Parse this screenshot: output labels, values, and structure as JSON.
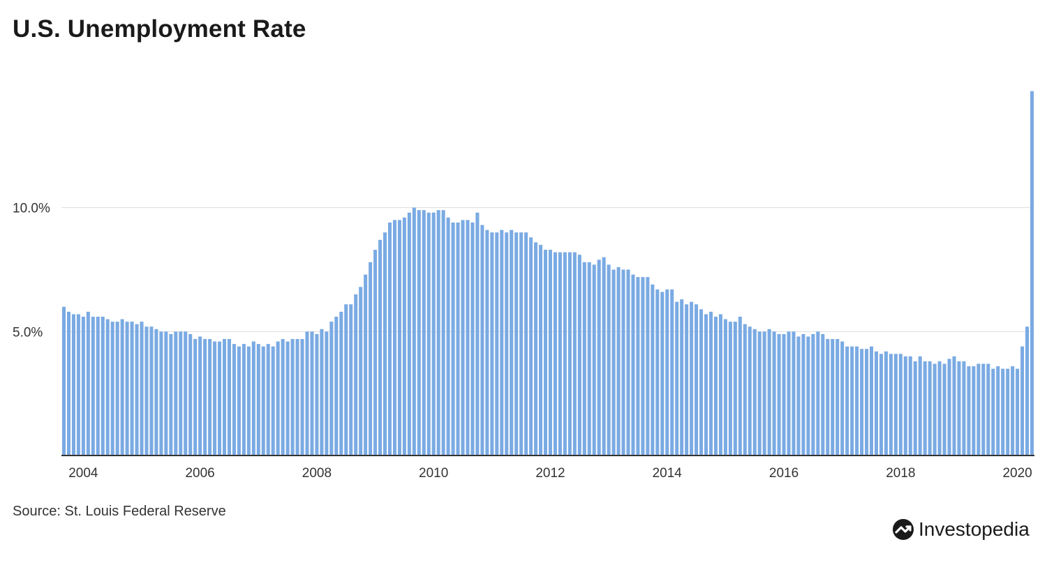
{
  "title": "U.S. Unemployment Rate",
  "source": "Source: St. Louis Federal Reserve",
  "brand": "Investopedia",
  "colors": {
    "bar": "#7aaae3",
    "axis": "#333333",
    "grid": "#dddddd"
  },
  "chart_data": {
    "type": "bar",
    "title": "U.S. Unemployment Rate",
    "xlabel": "",
    "ylabel": "",
    "ylim": [
      0,
      15
    ],
    "yticks": [
      5,
      10
    ],
    "ytick_labels": [
      "5.0%",
      "10.0%"
    ],
    "xtick_labels": [
      "2004",
      "2006",
      "2008",
      "2010",
      "2012",
      "2014",
      "2016",
      "2018",
      "2020"
    ],
    "grid": "horizontal",
    "x_start": "2003-09",
    "x_end": "2020-04",
    "values": [
      6.0,
      5.8,
      5.7,
      5.7,
      5.6,
      5.8,
      5.6,
      5.6,
      5.6,
      5.5,
      5.4,
      5.4,
      5.5,
      5.4,
      5.4,
      5.3,
      5.4,
      5.2,
      5.2,
      5.1,
      5.0,
      5.0,
      4.9,
      5.0,
      5.0,
      5.0,
      4.9,
      4.7,
      4.8,
      4.7,
      4.7,
      4.6,
      4.6,
      4.7,
      4.7,
      4.5,
      4.4,
      4.5,
      4.4,
      4.6,
      4.5,
      4.4,
      4.5,
      4.4,
      4.6,
      4.7,
      4.6,
      4.7,
      4.7,
      4.7,
      5.0,
      5.0,
      4.9,
      5.1,
      5.0,
      5.4,
      5.6,
      5.8,
      6.1,
      6.1,
      6.5,
      6.8,
      7.3,
      7.8,
      8.3,
      8.7,
      9.0,
      9.4,
      9.5,
      9.5,
      9.6,
      9.8,
      10.0,
      9.9,
      9.9,
      9.8,
      9.8,
      9.9,
      9.9,
      9.6,
      9.4,
      9.4,
      9.5,
      9.5,
      9.4,
      9.8,
      9.3,
      9.1,
      9.0,
      9.0,
      9.1,
      9.0,
      9.1,
      9.0,
      9.0,
      9.0,
      8.8,
      8.6,
      8.5,
      8.3,
      8.3,
      8.2,
      8.2,
      8.2,
      8.2,
      8.2,
      8.1,
      7.8,
      7.8,
      7.7,
      7.9,
      8.0,
      7.7,
      7.5,
      7.6,
      7.5,
      7.5,
      7.3,
      7.2,
      7.2,
      7.2,
      6.9,
      6.7,
      6.6,
      6.7,
      6.7,
      6.2,
      6.3,
      6.1,
      6.2,
      6.1,
      5.9,
      5.7,
      5.8,
      5.6,
      5.7,
      5.5,
      5.4,
      5.4,
      5.6,
      5.3,
      5.2,
      5.1,
      5.0,
      5.0,
      5.1,
      5.0,
      4.9,
      4.9,
      5.0,
      5.0,
      4.8,
      4.9,
      4.8,
      4.9,
      5.0,
      4.9,
      4.7,
      4.7,
      4.7,
      4.6,
      4.4,
      4.4,
      4.4,
      4.3,
      4.3,
      4.4,
      4.2,
      4.1,
      4.2,
      4.1,
      4.1,
      4.1,
      4.0,
      4.0,
      3.8,
      4.0,
      3.8,
      3.8,
      3.7,
      3.8,
      3.7,
      3.9,
      4.0,
      3.8,
      3.8,
      3.6,
      3.6,
      3.7,
      3.7,
      3.7,
      3.5,
      3.6,
      3.5,
      3.5,
      3.6,
      3.5,
      4.4,
      5.2,
      14.7
    ]
  }
}
